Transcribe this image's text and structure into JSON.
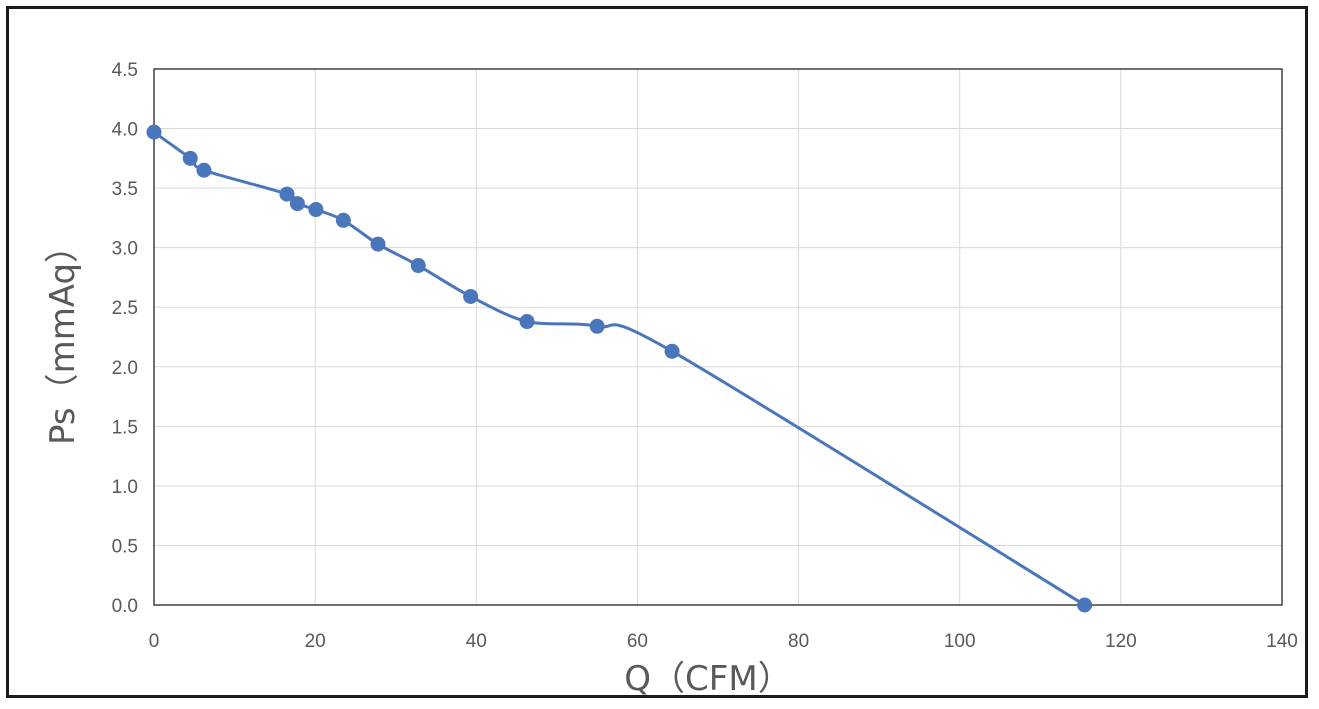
{
  "chart_data": {
    "type": "scatter",
    "xlabel": "Q（CFM）",
    "ylabel": "Ps（mmAq）",
    "xlim": [
      0,
      140
    ],
    "ylim": [
      0,
      4.5
    ],
    "x_ticks": [
      "0",
      "20",
      "40",
      "60",
      "80",
      "100",
      "120",
      "140"
    ],
    "y_ticks": [
      "0.0",
      "0.5",
      "1.0",
      "1.5",
      "2.0",
      "2.5",
      "3.0",
      "3.5",
      "4.0",
      "4.5"
    ],
    "grid": true,
    "line_color": "#4a76bb",
    "marker_color": "#4a76bb",
    "series": [
      {
        "points": [
          {
            "x": 0,
            "y": 3.97
          },
          {
            "x": 4.5,
            "y": 3.75
          },
          {
            "x": 6.2,
            "y": 3.65
          },
          {
            "x": 16.5,
            "y": 3.45
          },
          {
            "x": 17.8,
            "y": 3.37
          },
          {
            "x": 20.1,
            "y": 3.32
          },
          {
            "x": 23.5,
            "y": 3.23
          },
          {
            "x": 27.8,
            "y": 3.03
          },
          {
            "x": 32.8,
            "y": 2.85
          },
          {
            "x": 39.3,
            "y": 2.59
          },
          {
            "x": 46.3,
            "y": 2.38
          },
          {
            "x": 55.0,
            "y": 2.34
          },
          {
            "x": 64.3,
            "y": 2.13
          },
          {
            "x": 115.5,
            "y": 0.0
          }
        ]
      }
    ]
  }
}
